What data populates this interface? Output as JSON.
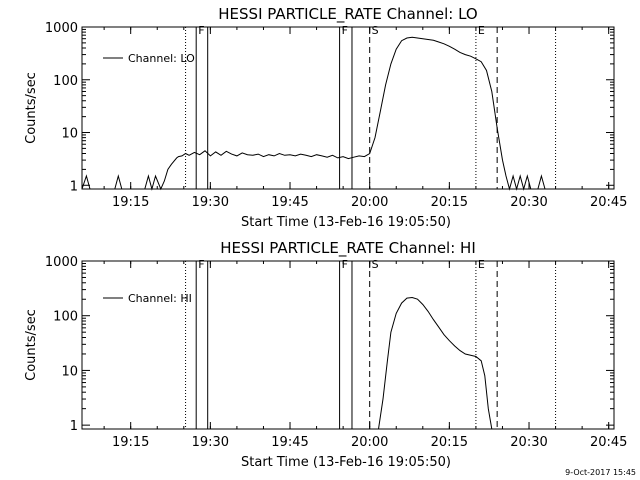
{
  "chart_data": [
    {
      "type": "line",
      "title": "HESSI PARTICLE_RATE Channel: LO",
      "xlabel": "Start Time (13-Feb-16 19:05:50)",
      "ylabel": "Counts/sec",
      "y_scale": "log",
      "ylim": [
        0.85,
        1000
      ],
      "x_range": [
        "19:05:50",
        "20:46:00"
      ],
      "x_ticks": [
        "19:15",
        "19:30",
        "19:45",
        "20:00",
        "20:15",
        "20:30",
        "20:45"
      ],
      "y_ticks": [
        "1",
        "10",
        "100",
        "1000"
      ],
      "legend": {
        "label": "Channel: LO",
        "placement": "top-left"
      },
      "markers": [
        {
          "time": "19:25:20",
          "style": "dotted",
          "label": ""
        },
        {
          "time": "19:27:20",
          "style": "solid",
          "label": "F"
        },
        {
          "time": "19:29:30",
          "style": "solid",
          "label": ""
        },
        {
          "time": "19:54:20",
          "style": "solid",
          "label": "F"
        },
        {
          "time": "19:56:40",
          "style": "solid",
          "label": ""
        },
        {
          "time": "20:00:00",
          "style": "dashed",
          "label": "S"
        },
        {
          "time": "20:20:00",
          "style": "dotted",
          "label": "E"
        },
        {
          "time": "20:24:00",
          "style": "dashed",
          "label": ""
        },
        {
          "time": "20:35:00",
          "style": "dotted",
          "label": ""
        }
      ],
      "x": [
        "19:05:50",
        "19:06:40",
        "19:07:20",
        "19:08:00",
        "19:12:00",
        "19:12:40",
        "19:13:20",
        "19:17:40",
        "19:18:20",
        "19:19:00",
        "19:19:40",
        "19:20:40",
        "19:21:20",
        "19:22:00",
        "19:22:40",
        "19:23:40",
        "19:24:00",
        "19:24:40",
        "19:25:20",
        "19:26:00",
        "19:27:00",
        "19:28:00",
        "19:29:00",
        "19:30:00",
        "19:31:00",
        "19:32:00",
        "19:33:00",
        "19:34:00",
        "19:35:00",
        "19:36:00",
        "19:37:00",
        "19:38:00",
        "19:39:00",
        "19:40:00",
        "19:41:00",
        "19:42:00",
        "19:43:00",
        "19:44:00",
        "19:45:00",
        "19:46:00",
        "19:47:00",
        "19:48:00",
        "19:49:00",
        "19:50:00",
        "19:51:00",
        "19:52:00",
        "19:53:00",
        "19:54:00",
        "19:55:00",
        "19:56:00",
        "19:57:00",
        "19:58:00",
        "19:59:00",
        "20:00:00",
        "20:01:00",
        "20:02:00",
        "20:03:00",
        "20:04:00",
        "20:05:00",
        "20:06:00",
        "20:07:00",
        "20:08:00",
        "20:09:00",
        "20:10:00",
        "20:11:00",
        "20:12:00",
        "20:13:00",
        "20:14:00",
        "20:15:00",
        "20:16:00",
        "20:17:00",
        "20:18:00",
        "20:19:00",
        "20:20:00",
        "20:21:00",
        "20:22:00",
        "20:23:00",
        "20:24:00",
        "20:25:00",
        "20:25:40",
        "20:26:20",
        "20:27:00",
        "20:27:40",
        "20:28:20",
        "20:29:00",
        "20:29:40",
        "20:30:20",
        "20:31:00",
        "20:31:40",
        "20:32:20",
        "20:33:00",
        "20:33:40",
        "20:34:20"
      ],
      "values": [
        0.85,
        1.5,
        0.85,
        0.85,
        0.85,
        1.5,
        0.85,
        0.85,
        1.5,
        0.85,
        1.5,
        0.85,
        1.2,
        2.0,
        2.5,
        3.3,
        3.5,
        3.6,
        4.0,
        3.7,
        4.2,
        3.8,
        4.5,
        3.6,
        4.3,
        3.7,
        4.4,
        3.9,
        3.6,
        4.1,
        3.8,
        3.7,
        3.9,
        3.5,
        3.8,
        3.6,
        4.0,
        3.7,
        3.8,
        3.6,
        3.9,
        3.7,
        3.5,
        3.8,
        3.6,
        3.4,
        3.7,
        3.3,
        3.5,
        3.2,
        3.4,
        3.6,
        3.5,
        4.0,
        8.0,
        25,
        80,
        200,
        380,
        550,
        620,
        640,
        620,
        600,
        580,
        560,
        520,
        480,
        430,
        380,
        330,
        300,
        280,
        250,
        220,
        150,
        60,
        12,
        3,
        1.5,
        0.85,
        1.5,
        0.85,
        1.5,
        0.85,
        1.5,
        0.85,
        0.85,
        0.85,
        1.5,
        0.85,
        0.85,
        0.85
      ]
    },
    {
      "type": "line",
      "title": "HESSI PARTICLE_RATE Channel: HI",
      "xlabel": "Start Time (13-Feb-16 19:05:50)",
      "ylabel": "Counts/sec",
      "y_scale": "log",
      "ylim": [
        0.85,
        1000
      ],
      "x_range": [
        "19:05:50",
        "20:46:00"
      ],
      "x_ticks": [
        "19:15",
        "19:30",
        "19:45",
        "20:00",
        "20:15",
        "20:30",
        "20:45"
      ],
      "y_ticks": [
        "1",
        "10",
        "100",
        "1000"
      ],
      "legend": {
        "label": "Channel: HI",
        "placement": "top-left"
      },
      "markers": [
        {
          "time": "19:25:20",
          "style": "dotted",
          "label": ""
        },
        {
          "time": "19:27:20",
          "style": "solid",
          "label": "F"
        },
        {
          "time": "19:29:30",
          "style": "solid",
          "label": ""
        },
        {
          "time": "19:54:20",
          "style": "solid",
          "label": "F"
        },
        {
          "time": "19:56:40",
          "style": "solid",
          "label": ""
        },
        {
          "time": "20:00:00",
          "style": "dashed",
          "label": "S"
        },
        {
          "time": "20:20:00",
          "style": "dotted",
          "label": "E"
        },
        {
          "time": "20:24:00",
          "style": "dashed",
          "label": ""
        },
        {
          "time": "20:35:00",
          "style": "dotted",
          "label": ""
        }
      ],
      "x": [
        "20:01:40",
        "20:02:30",
        "20:03:20",
        "20:04:00",
        "20:05:00",
        "20:06:00",
        "20:07:00",
        "20:08:00",
        "20:09:00",
        "20:10:00",
        "20:11:00",
        "20:12:00",
        "20:13:00",
        "20:14:00",
        "20:15:00",
        "20:16:00",
        "20:17:00",
        "20:18:00",
        "20:19:00",
        "20:20:00",
        "20:21:00",
        "20:21:40",
        "20:22:20",
        "20:23:00"
      ],
      "values": [
        0.85,
        3,
        15,
        50,
        110,
        170,
        210,
        215,
        200,
        160,
        120,
        85,
        62,
        45,
        35,
        28,
        23,
        20,
        19,
        18,
        15,
        8,
        2,
        0.85
      ]
    }
  ],
  "footer": {
    "timestamp": "9-Oct-2017 15:45"
  }
}
